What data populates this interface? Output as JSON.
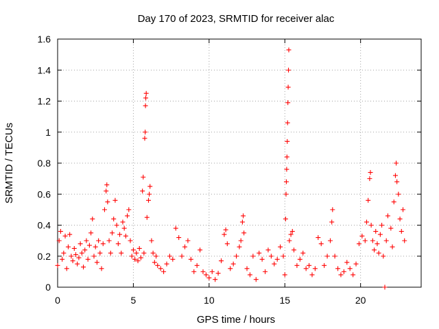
{
  "chart_data": {
    "type": "scatter",
    "title": "Day 170 of 2023, SRMTID for receiver alac",
    "xlabel": "GPS time / hours",
    "ylabel": "SRMTID / TECUs",
    "xlim": [
      0,
      24
    ],
    "ylim": [
      0,
      1.6
    ],
    "xticks": [
      0,
      5,
      10,
      15,
      20
    ],
    "xtick_labels": [
      "0",
      "5",
      "10",
      "15",
      "20"
    ],
    "yticks": [
      0,
      0.2,
      0.4,
      0.6,
      0.8,
      1,
      1.2,
      1.4,
      1.6
    ],
    "ytick_labels": [
      "0",
      "0.2",
      "0.4",
      "0.6",
      "0.8",
      "1",
      "1.2",
      "1.4",
      "1.6"
    ],
    "grid": true,
    "marker": "+",
    "color": "#ff0000",
    "series": [
      {
        "name": "SRMTID",
        "points": [
          [
            0.0,
            0.14
          ],
          [
            0.1,
            0.3
          ],
          [
            0.2,
            0.36
          ],
          [
            0.3,
            0.18
          ],
          [
            0.4,
            0.22
          ],
          [
            0.5,
            0.33
          ],
          [
            0.6,
            0.12
          ],
          [
            0.7,
            0.26
          ],
          [
            0.8,
            0.34
          ],
          [
            0.9,
            0.2
          ],
          [
            1.0,
            0.17
          ],
          [
            1.1,
            0.25
          ],
          [
            1.2,
            0.21
          ],
          [
            1.3,
            0.15
          ],
          [
            1.4,
            0.19
          ],
          [
            1.5,
            0.28
          ],
          [
            1.6,
            0.22
          ],
          [
            1.7,
            0.13
          ],
          [
            1.8,
            0.24
          ],
          [
            1.9,
            0.3
          ],
          [
            2.0,
            0.18
          ],
          [
            2.1,
            0.27
          ],
          [
            2.2,
            0.35
          ],
          [
            2.3,
            0.44
          ],
          [
            2.4,
            0.2
          ],
          [
            2.5,
            0.26
          ],
          [
            2.6,
            0.16
          ],
          [
            2.7,
            0.3
          ],
          [
            2.8,
            0.22
          ],
          [
            2.9,
            0.12
          ],
          [
            3.0,
            0.28
          ],
          [
            3.1,
            0.5
          ],
          [
            3.2,
            0.62
          ],
          [
            3.25,
            0.66
          ],
          [
            3.3,
            0.55
          ],
          [
            3.4,
            0.3
          ],
          [
            3.5,
            0.22
          ],
          [
            3.6,
            0.35
          ],
          [
            3.7,
            0.44
          ],
          [
            3.8,
            0.56
          ],
          [
            3.9,
            0.4
          ],
          [
            4.0,
            0.28
          ],
          [
            4.1,
            0.34
          ],
          [
            4.2,
            0.22
          ],
          [
            4.3,
            0.42
          ],
          [
            4.4,
            0.38
          ],
          [
            4.5,
            0.33
          ],
          [
            4.6,
            0.46
          ],
          [
            4.7,
            0.5
          ],
          [
            4.8,
            0.3
          ],
          [
            4.9,
            0.2
          ],
          [
            5.0,
            0.24
          ],
          [
            5.1,
            0.18
          ],
          [
            5.2,
            0.22
          ],
          [
            5.3,
            0.17
          ],
          [
            5.4,
            0.25
          ],
          [
            5.5,
            0.19
          ],
          [
            5.6,
            0.62
          ],
          [
            5.65,
            0.71
          ],
          [
            5.7,
            0.22
          ],
          [
            5.75,
            0.96
          ],
          [
            5.78,
            1.0
          ],
          [
            5.8,
            1.17
          ],
          [
            5.82,
            1.22
          ],
          [
            5.85,
            1.25
          ],
          [
            5.9,
            0.45
          ],
          [
            6.0,
            0.56
          ],
          [
            6.05,
            0.6
          ],
          [
            6.1,
            0.65
          ],
          [
            6.2,
            0.3
          ],
          [
            6.3,
            0.22
          ],
          [
            6.4,
            0.16
          ],
          [
            6.5,
            0.2
          ],
          [
            6.6,
            0.14
          ],
          [
            6.8,
            0.12
          ],
          [
            7.0,
            0.1
          ],
          [
            7.2,
            0.15
          ],
          [
            7.4,
            0.2
          ],
          [
            7.6,
            0.18
          ],
          [
            7.8,
            0.38
          ],
          [
            8.0,
            0.32
          ],
          [
            8.2,
            0.2
          ],
          [
            8.4,
            0.26
          ],
          [
            8.6,
            0.3
          ],
          [
            8.8,
            0.18
          ],
          [
            9.0,
            0.1
          ],
          [
            9.2,
            0.14
          ],
          [
            9.4,
            0.24
          ],
          [
            9.6,
            0.1
          ],
          [
            9.8,
            0.08
          ],
          [
            10.0,
            0.06
          ],
          [
            10.2,
            0.1
          ],
          [
            10.4,
            0.05
          ],
          [
            10.6,
            0.09
          ],
          [
            10.8,
            0.17
          ],
          [
            11.0,
            0.34
          ],
          [
            11.1,
            0.37
          ],
          [
            11.2,
            0.28
          ],
          [
            11.4,
            0.12
          ],
          [
            11.6,
            0.15
          ],
          [
            11.8,
            0.2
          ],
          [
            12.0,
            0.26
          ],
          [
            12.1,
            0.3
          ],
          [
            12.2,
            0.42
          ],
          [
            12.25,
            0.46
          ],
          [
            12.3,
            0.35
          ],
          [
            12.5,
            0.12
          ],
          [
            12.7,
            0.08
          ],
          [
            12.9,
            0.2
          ],
          [
            13.1,
            0.05
          ],
          [
            13.3,
            0.22
          ],
          [
            13.5,
            0.18
          ],
          [
            13.7,
            0.1
          ],
          [
            13.9,
            0.24
          ],
          [
            14.1,
            0.2
          ],
          [
            14.3,
            0.15
          ],
          [
            14.5,
            0.18
          ],
          [
            14.7,
            0.26
          ],
          [
            14.9,
            0.2
          ],
          [
            15.0,
            0.08
          ],
          [
            15.05,
            0.44
          ],
          [
            15.08,
            0.6
          ],
          [
            15.1,
            0.68
          ],
          [
            15.12,
            0.76
          ],
          [
            15.14,
            0.84
          ],
          [
            15.16,
            0.94
          ],
          [
            15.18,
            1.06
          ],
          [
            15.2,
            1.19
          ],
          [
            15.22,
            1.29
          ],
          [
            15.24,
            1.4
          ],
          [
            15.26,
            1.53
          ],
          [
            15.3,
            0.3
          ],
          [
            15.4,
            0.34
          ],
          [
            15.5,
            0.36
          ],
          [
            15.6,
            0.24
          ],
          [
            15.8,
            0.14
          ],
          [
            16.0,
            0.18
          ],
          [
            16.2,
            0.22
          ],
          [
            16.4,
            0.12
          ],
          [
            16.6,
            0.14
          ],
          [
            16.8,
            0.08
          ],
          [
            17.0,
            0.12
          ],
          [
            17.2,
            0.32
          ],
          [
            17.4,
            0.28
          ],
          [
            17.6,
            0.14
          ],
          [
            17.8,
            0.2
          ],
          [
            18.0,
            0.3
          ],
          [
            18.1,
            0.42
          ],
          [
            18.15,
            0.5
          ],
          [
            18.3,
            0.2
          ],
          [
            18.5,
            0.12
          ],
          [
            18.7,
            0.08
          ],
          [
            18.9,
            0.1
          ],
          [
            19.1,
            0.16
          ],
          [
            19.3,
            0.12
          ],
          [
            19.5,
            0.08
          ],
          [
            19.7,
            0.15
          ],
          [
            19.9,
            0.28
          ],
          [
            20.1,
            0.33
          ],
          [
            20.3,
            0.3
          ],
          [
            20.4,
            0.42
          ],
          [
            20.5,
            0.56
          ],
          [
            20.6,
            0.7
          ],
          [
            20.65,
            0.74
          ],
          [
            20.7,
            0.4
          ],
          [
            20.8,
            0.3
          ],
          [
            20.9,
            0.24
          ],
          [
            21.0,
            0.36
          ],
          [
            21.1,
            0.28
          ],
          [
            21.2,
            0.22
          ],
          [
            21.3,
            0.34
          ],
          [
            21.4,
            0.4
          ],
          [
            21.5,
            0.2
          ],
          [
            21.6,
            0.0
          ],
          [
            21.7,
            0.3
          ],
          [
            21.8,
            0.46
          ],
          [
            22.0,
            0.38
          ],
          [
            22.1,
            0.26
          ],
          [
            22.2,
            0.55
          ],
          [
            22.3,
            0.72
          ],
          [
            22.35,
            0.8
          ],
          [
            22.4,
            0.68
          ],
          [
            22.5,
            0.6
          ],
          [
            22.6,
            0.44
          ],
          [
            22.7,
            0.36
          ],
          [
            22.8,
            0.5
          ],
          [
            22.9,
            0.3
          ]
        ]
      }
    ]
  }
}
